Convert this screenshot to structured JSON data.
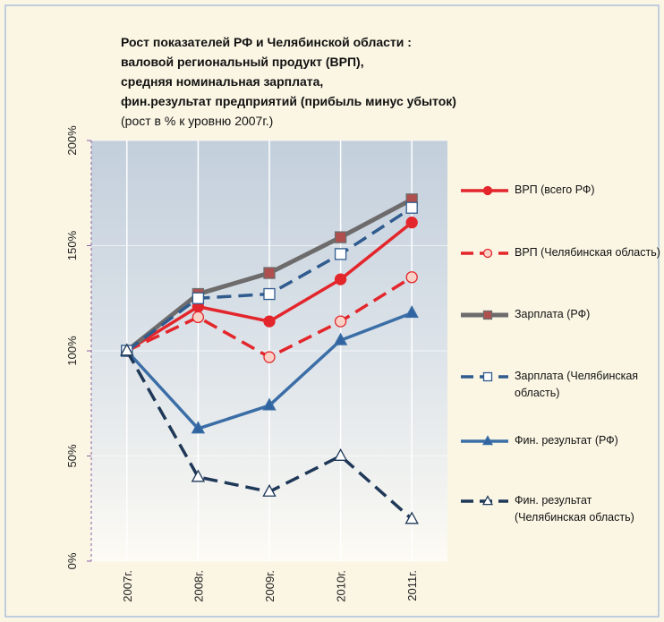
{
  "chart_data": {
    "type": "line",
    "title": [
      "Рост показателей РФ и  Челябинской области :",
      "валовой региональный продукт (ВРП),",
      "средняя номинальная  зарплата,",
      "фин.результат предприятий (прибыль минус убыток)"
    ],
    "subtitle": "(рост  в % к уровню 2007г.)",
    "categories": [
      "2007г.",
      "2008г.",
      "2009г.",
      "2010г.",
      "2011г."
    ],
    "ylim": [
      0,
      200
    ],
    "yticks": [
      {
        "value": 0,
        "label": "0%"
      },
      {
        "value": 50,
        "label": "50%"
      },
      {
        "value": 100,
        "label": "100%"
      },
      {
        "value": 150,
        "label": "150%"
      },
      {
        "value": 200,
        "label": "200%"
      }
    ],
    "grid": true,
    "legend": "right",
    "series": [
      {
        "name": "ВРП (всего РФ)",
        "color": "#e3262b",
        "dashed": false,
        "marker": "circle",
        "marker_fill": "#e3262b",
        "values": [
          100,
          121,
          114,
          134,
          161
        ]
      },
      {
        "name": "ВРП (Челябинская область)",
        "color": "#e3262b",
        "dashed": true,
        "marker": "circle",
        "marker_fill": "#fad3c8",
        "values": [
          100,
          116,
          97,
          114,
          135
        ]
      },
      {
        "name": "Зарплата (РФ)",
        "color": "#6d6b6b",
        "dashed": false,
        "marker": "square",
        "marker_fill": "#b0504e",
        "values": [
          100,
          127,
          137,
          154,
          172
        ]
      },
      {
        "name": "Зарплата (Челябинская область)",
        "color": "#2f5b8e",
        "dashed": true,
        "marker": "square",
        "marker_fill": "#ffffff",
        "values": [
          100,
          125,
          127,
          146,
          168
        ]
      },
      {
        "name": "Фин. результат (РФ)",
        "color": "#3b6ea6",
        "dashed": false,
        "marker": "triangle",
        "marker_fill": "#2f64a0",
        "values": [
          100,
          63,
          74,
          105,
          118
        ]
      },
      {
        "name": "Фин. результат (Челябинская область)",
        "color": "#1f3858",
        "dashed": true,
        "marker": "triangle",
        "marker_fill": "#ffffff",
        "values": [
          100,
          40,
          33,
          50,
          20
        ]
      }
    ]
  }
}
